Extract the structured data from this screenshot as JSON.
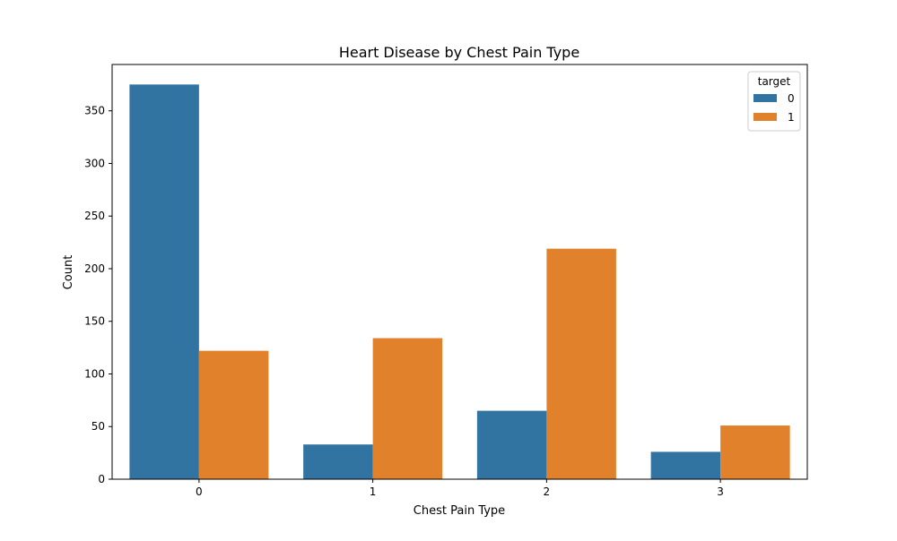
{
  "chart_data": {
    "type": "bar",
    "title": "Heart Disease by Chest Pain Type",
    "xlabel": "Chest Pain Type",
    "ylabel": "Count",
    "categories": [
      "0",
      "1",
      "2",
      "3"
    ],
    "series": [
      {
        "name": "0",
        "color": "#3274a1",
        "values": [
          375,
          33,
          65,
          26
        ]
      },
      {
        "name": "1",
        "color": "#e1812c",
        "values": [
          122,
          134,
          219,
          51
        ]
      }
    ],
    "ylim": [
      0,
      394
    ],
    "yticks": [
      0,
      50,
      100,
      150,
      200,
      250,
      300,
      350
    ],
    "legend": {
      "title": "target",
      "placement": "top-right"
    },
    "grid": false
  }
}
